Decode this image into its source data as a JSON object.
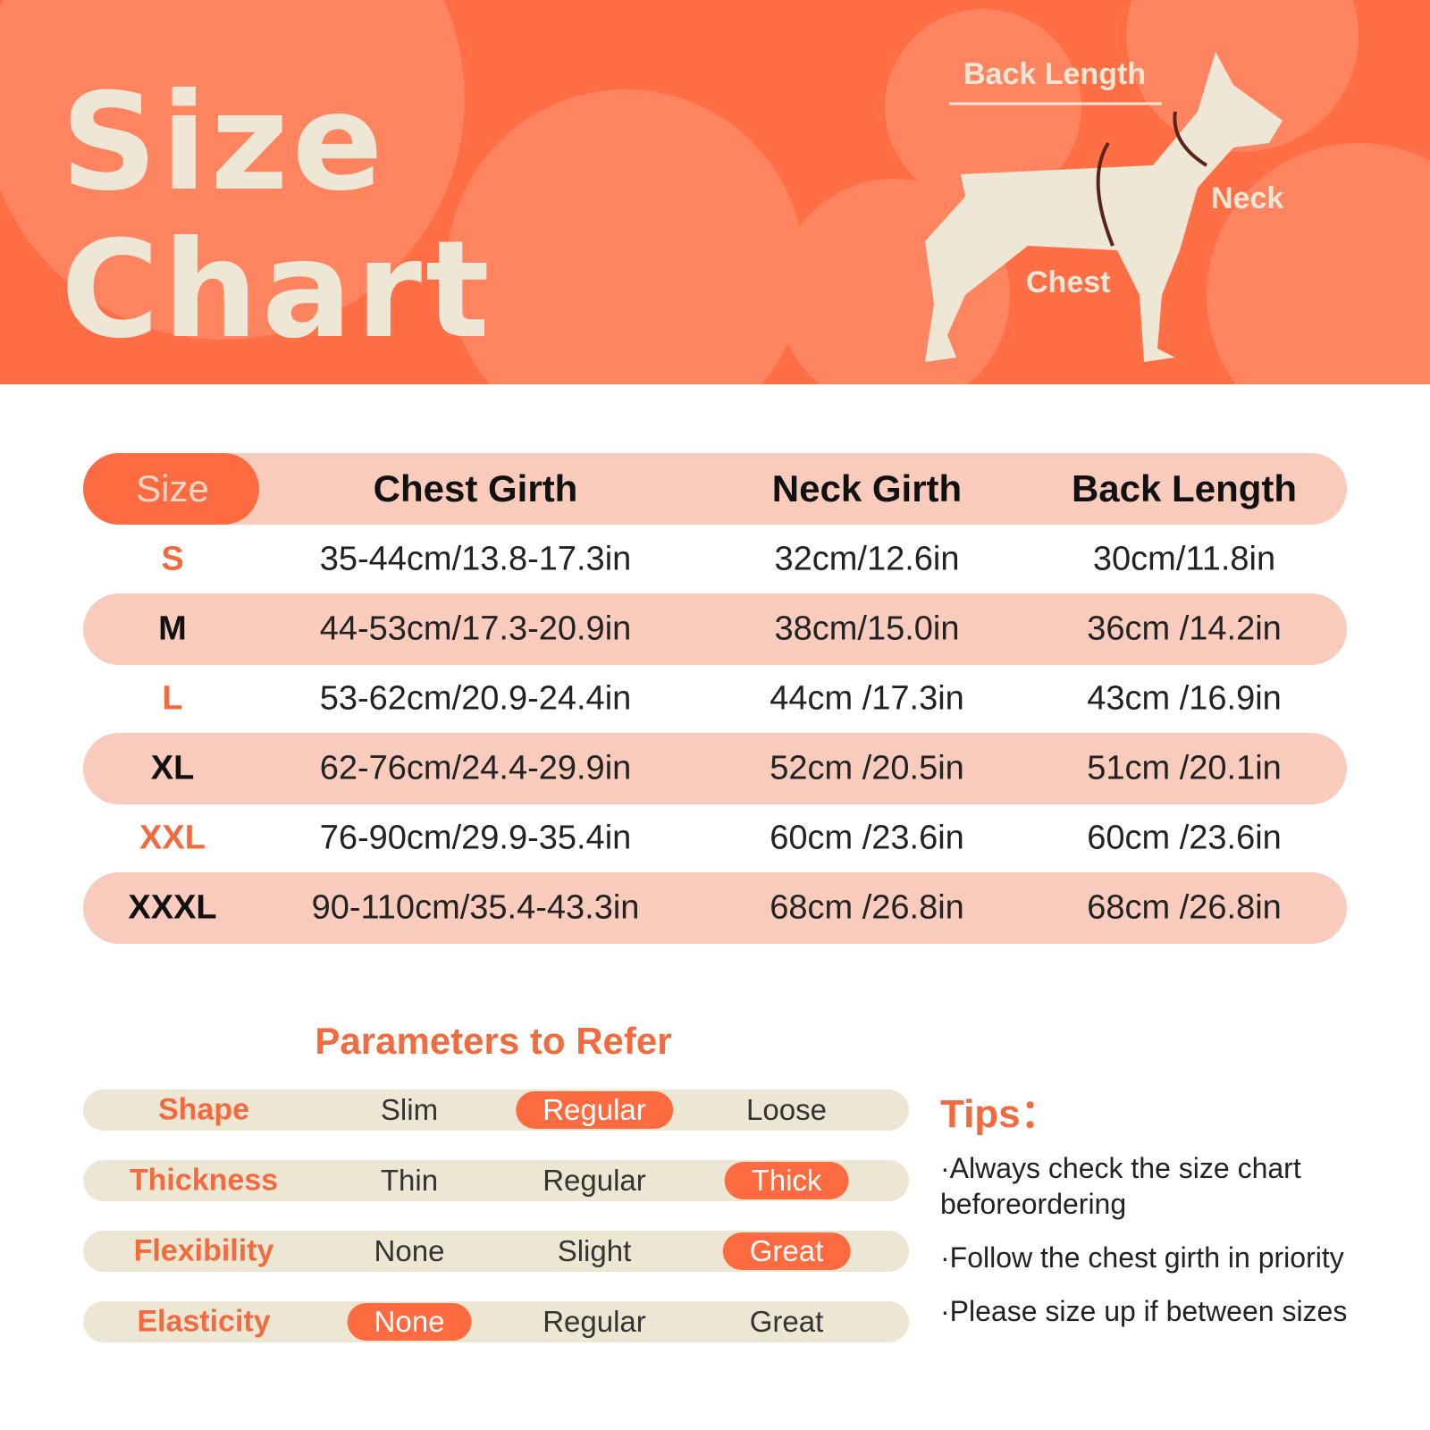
{
  "header": {
    "title_lines": [
      "Size",
      "Chart"
    ],
    "dog_labels": [
      "Back Length",
      "Neck",
      "Chest"
    ]
  },
  "table": {
    "headers": [
      "Size",
      "Chest Girth",
      "Neck Girth",
      "Back Length"
    ],
    "rows": [
      [
        "S",
        "35-44cm/13.8-17.3in",
        "32cm/12.6in",
        "30cm/11.8in"
      ],
      [
        "M",
        "44-53cm/17.3-20.9in",
        "38cm/15.0in",
        "36cm /14.2in"
      ],
      [
        "L",
        "53-62cm/20.9-24.4in",
        "44cm /17.3in",
        "43cm /16.9in"
      ],
      [
        "XL",
        "62-76cm/24.4-29.9in",
        "52cm /20.5in",
        "51cm /20.1in"
      ],
      [
        "XXL",
        "76-90cm/29.9-35.4in",
        "60cm /23.6in",
        "60cm /23.6in"
      ],
      [
        "XXXL",
        "90-110cm/35.4-43.3in",
        "68cm /26.8in",
        "68cm /26.8in"
      ]
    ]
  },
  "parameters": {
    "title": "Parameters to Refer",
    "rows": [
      {
        "label": "Shape",
        "options": [
          "Slim",
          "Regular",
          "Loose"
        ],
        "selected": 1
      },
      {
        "label": "Thickness",
        "options": [
          "Thin",
          "Regular",
          "Thick"
        ],
        "selected": 2
      },
      {
        "label": "Flexibility",
        "options": [
          "None",
          "Slight",
          "Great"
        ],
        "selected": 2
      },
      {
        "label": "Elasticity",
        "options": [
          "None",
          "Regular",
          "Great"
        ],
        "selected": 0
      }
    ]
  },
  "tips": {
    "title": "Tips：",
    "items": [
      "·Always check the size chart beforeordering",
      "·Follow the chest girth in priority",
      "·Please size up if between sizes"
    ]
  }
}
